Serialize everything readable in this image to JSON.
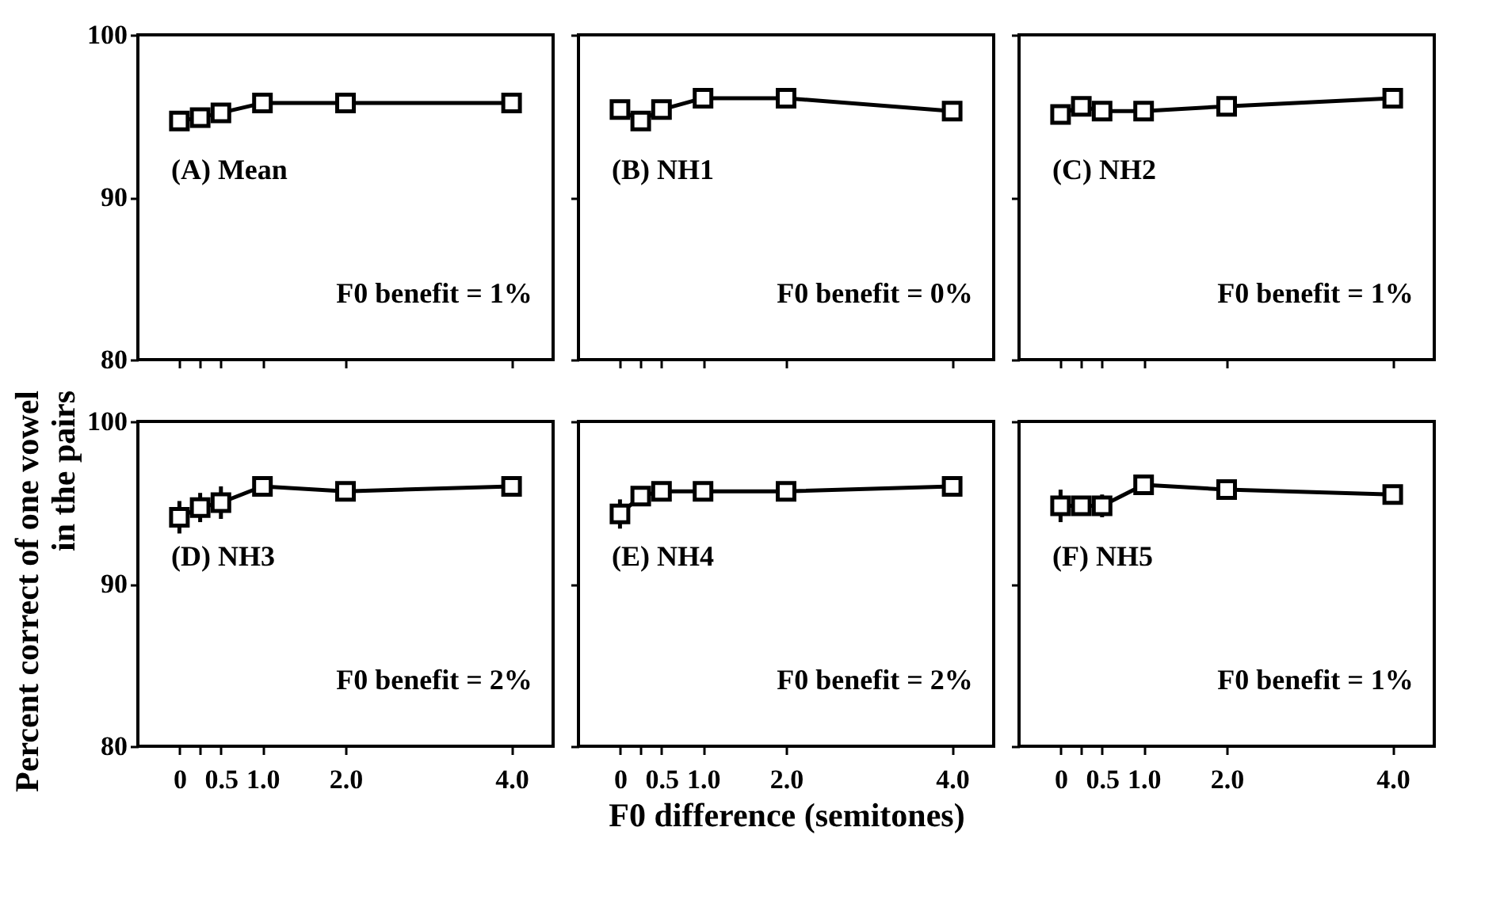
{
  "chart_data": [
    {
      "type": "line",
      "annotations": [
        "(A)  Mean",
        "F0 benefit = 1%"
      ],
      "x": [
        0,
        0.25,
        0.5,
        1,
        2,
        4
      ],
      "xlim": [
        -0.5,
        4.5
      ],
      "ylim": [
        80,
        100
      ],
      "yticks": [
        80,
        90,
        100
      ],
      "xticks": [
        {
          "value": 0,
          "label": null
        },
        {
          "value": 0.25,
          "label": null
        },
        {
          "value": 0.5,
          "label": null
        },
        {
          "value": 1,
          "label": null
        },
        {
          "value": 2,
          "label": null
        },
        {
          "value": 4,
          "label": null
        }
      ],
      "tick_labels": "y",
      "marker": "square",
      "grid": false,
      "series": [
        {
          "color": "#000000",
          "values": [
            94.7,
            94.9,
            95.2,
            95.8,
            95.8,
            95.8
          ]
        }
      ]
    },
    {
      "type": "line",
      "annotations": [
        "(B)  NH1",
        "F0 benefit = 0%"
      ],
      "x": [
        0,
        0.25,
        0.5,
        1,
        2,
        4
      ],
      "xlim": [
        -0.5,
        4.5
      ],
      "ylim": [
        80,
        100
      ],
      "yticks": [
        {
          "value": 80,
          "label": null
        },
        {
          "value": 90,
          "label": null
        },
        {
          "value": 100,
          "label": null
        }
      ],
      "xticks": [
        {
          "value": 0,
          "label": null
        },
        {
          "value": 0.25,
          "label": null
        },
        {
          "value": 0.5,
          "label": null
        },
        {
          "value": 1,
          "label": null
        },
        {
          "value": 2,
          "label": null
        },
        {
          "value": 4,
          "label": null
        }
      ],
      "tick_labels": false,
      "marker": "square",
      "grid": false,
      "series": [
        {
          "color": "#000000",
          "values": [
            95.4,
            94.7,
            95.4,
            96.1,
            96.1,
            95.3
          ]
        }
      ]
    },
    {
      "type": "line",
      "annotations": [
        "(C)  NH2",
        "F0 benefit = 1%"
      ],
      "x": [
        0,
        0.25,
        0.5,
        1,
        2,
        4
      ],
      "xlim": [
        -0.5,
        4.5
      ],
      "ylim": [
        80,
        100
      ],
      "yticks": [
        {
          "value": 80,
          "label": null
        },
        {
          "value": 90,
          "label": null
        },
        {
          "value": 100,
          "label": null
        }
      ],
      "xticks": [
        {
          "value": 0,
          "label": null
        },
        {
          "value": 0.25,
          "label": null
        },
        {
          "value": 0.5,
          "label": null
        },
        {
          "value": 1,
          "label": null
        },
        {
          "value": 2,
          "label": null
        },
        {
          "value": 4,
          "label": null
        }
      ],
      "tick_labels": false,
      "marker": "square",
      "grid": false,
      "series": [
        {
          "color": "#000000",
          "values": [
            95.1,
            95.6,
            95.3,
            95.3,
            95.6,
            96.1
          ]
        }
      ]
    },
    {
      "type": "line",
      "annotations": [
        "(D)  NH3",
        "F0 benefit = 2%"
      ],
      "ylabel": "Percent correct of one vowel\nin the pairs",
      "x": [
        0,
        0.25,
        0.5,
        1,
        2,
        4
      ],
      "xlim": [
        -0.5,
        4.5
      ],
      "ylim": [
        80,
        100
      ],
      "yticks": [
        80,
        90,
        100
      ],
      "xticks": [
        0,
        {
          "value": 0.25,
          "label": null
        },
        0.5,
        {
          "value": 1,
          "label": "1.0"
        },
        {
          "value": 2,
          "label": "2.0"
        },
        {
          "value": 4,
          "label": "4.0"
        }
      ],
      "marker": "square",
      "grid": false,
      "series": [
        {
          "color": "#000000",
          "values": [
            94.1,
            94.7,
            95.0,
            96.0,
            95.7,
            96.0
          ],
          "errors": [
            1.0,
            0.9,
            1.0,
            null,
            null,
            null
          ]
        }
      ]
    },
    {
      "type": "line",
      "annotations": [
        "(E)  NH4",
        "F0 benefit = 2%"
      ],
      "xlabel": "F0 difference (semitones)",
      "x": [
        0,
        0.25,
        0.5,
        1,
        2,
        4
      ],
      "xlim": [
        -0.5,
        4.5
      ],
      "ylim": [
        80,
        100
      ],
      "yticks": [
        {
          "value": 80,
          "label": null
        },
        {
          "value": 90,
          "label": null
        },
        {
          "value": 100,
          "label": null
        }
      ],
      "xticks": [
        0,
        {
          "value": 0.25,
          "label": null
        },
        0.5,
        {
          "value": 1,
          "label": "1.0"
        },
        {
          "value": 2,
          "label": "2.0"
        },
        {
          "value": 4,
          "label": "4.0"
        }
      ],
      "tick_labels": "x",
      "marker": "square",
      "grid": false,
      "series": [
        {
          "color": "#000000",
          "values": [
            94.3,
            95.4,
            95.7,
            95.7,
            95.7,
            96.0
          ],
          "errors": [
            0.9,
            0.5,
            null,
            null,
            null,
            null
          ]
        }
      ]
    },
    {
      "type": "line",
      "annotations": [
        "(F)  NH5",
        "F0 benefit = 1%"
      ],
      "x": [
        0,
        0.25,
        0.5,
        1,
        2,
        4
      ],
      "xlim": [
        -0.5,
        4.5
      ],
      "ylim": [
        80,
        100
      ],
      "yticks": [
        {
          "value": 80,
          "label": null
        },
        {
          "value": 90,
          "label": null
        },
        {
          "value": 100,
          "label": null
        }
      ],
      "xticks": [
        0,
        {
          "value": 0.25,
          "label": null
        },
        0.5,
        {
          "value": 1,
          "label": "1.0"
        },
        {
          "value": 2,
          "label": "2.0"
        },
        {
          "value": 4,
          "label": "4.0"
        }
      ],
      "tick_labels": "x",
      "marker": "square",
      "grid": false,
      "series": [
        {
          "color": "#000000",
          "values": [
            94.8,
            94.8,
            94.8,
            96.1,
            95.8,
            95.5
          ],
          "errors": [
            1.0,
            null,
            0.7,
            null,
            null,
            null
          ]
        }
      ]
    }
  ]
}
